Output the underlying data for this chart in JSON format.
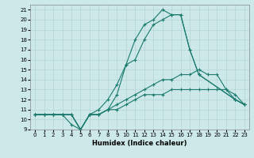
{
  "background_color": "#cce8e8",
  "grid_color": "#b0d0d0",
  "line_color": "#1a7a6e",
  "xlabel": "Humidex (Indice chaleur)",
  "xlim": [
    -0.5,
    23.5
  ],
  "ylim": [
    9,
    21.5
  ],
  "yticks": [
    9,
    10,
    11,
    12,
    13,
    14,
    15,
    16,
    17,
    18,
    19,
    20,
    21
  ],
  "xticks": [
    0,
    1,
    2,
    3,
    4,
    5,
    6,
    7,
    8,
    9,
    10,
    11,
    12,
    13,
    14,
    15,
    16,
    17,
    18,
    19,
    20,
    21,
    22,
    23
  ],
  "lines": [
    {
      "x": [
        0,
        1,
        2,
        3,
        4,
        5,
        6,
        7,
        8,
        9,
        10,
        11,
        12,
        13,
        14,
        15,
        16,
        17,
        18,
        22,
        23
      ],
      "y": [
        10.5,
        10.5,
        10.5,
        10.5,
        9.5,
        9.0,
        10.5,
        11.0,
        12.0,
        13.5,
        15.5,
        18.0,
        19.5,
        20.0,
        21.0,
        20.5,
        20.5,
        17.0,
        14.5,
        12.0,
        11.5
      ]
    },
    {
      "x": [
        0,
        1,
        2,
        3,
        4,
        5,
        6,
        7,
        8,
        9,
        10,
        11,
        12,
        13,
        14,
        15,
        16,
        17,
        18,
        22,
        23
      ],
      "y": [
        10.5,
        10.5,
        10.5,
        10.5,
        10.5,
        9.0,
        10.5,
        10.5,
        11.0,
        12.5,
        15.5,
        16.0,
        18.0,
        19.5,
        20.0,
        20.5,
        20.5,
        17.0,
        14.5,
        12.0,
        11.5
      ]
    },
    {
      "x": [
        0,
        1,
        2,
        3,
        4,
        5,
        6,
        7,
        8,
        9,
        10,
        11,
        12,
        13,
        14,
        15,
        16,
        17,
        18,
        19,
        20,
        21,
        22,
        23
      ],
      "y": [
        10.5,
        10.5,
        10.5,
        10.5,
        10.5,
        9.0,
        10.5,
        10.5,
        11.0,
        11.5,
        12.0,
        12.5,
        13.0,
        13.5,
        14.0,
        14.0,
        14.5,
        14.5,
        15.0,
        14.5,
        14.5,
        13.0,
        12.0,
        11.5
      ]
    },
    {
      "x": [
        0,
        1,
        2,
        3,
        4,
        5,
        6,
        7,
        8,
        9,
        10,
        11,
        12,
        13,
        14,
        15,
        16,
        17,
        18,
        19,
        20,
        21,
        22,
        23
      ],
      "y": [
        10.5,
        10.5,
        10.5,
        10.5,
        10.5,
        9.0,
        10.5,
        10.5,
        11.0,
        11.0,
        11.5,
        12.0,
        12.5,
        12.5,
        12.5,
        13.0,
        13.0,
        13.0,
        13.0,
        13.0,
        13.0,
        13.0,
        12.5,
        11.5
      ]
    }
  ]
}
